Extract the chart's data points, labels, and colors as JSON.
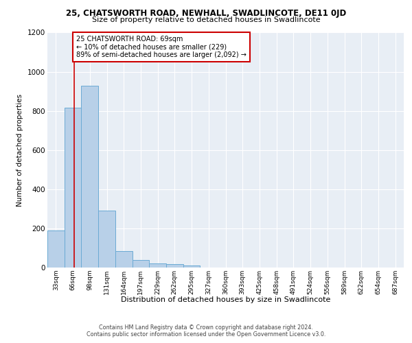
{
  "title1": "25, CHATSWORTH ROAD, NEWHALL, SWADLINCOTE, DE11 0JD",
  "title2": "Size of property relative to detached houses in Swadlincote",
  "xlabel": "Distribution of detached houses by size in Swadlincote",
  "ylabel": "Number of detached properties",
  "bin_labels": [
    "33sqm",
    "66sqm",
    "98sqm",
    "131sqm",
    "164sqm",
    "197sqm",
    "229sqm",
    "262sqm",
    "295sqm",
    "327sqm",
    "360sqm",
    "393sqm",
    "425sqm",
    "458sqm",
    "491sqm",
    "524sqm",
    "556sqm",
    "589sqm",
    "622sqm",
    "654sqm",
    "687sqm"
  ],
  "bar_heights": [
    190,
    815,
    930,
    290,
    85,
    37,
    20,
    18,
    11,
    0,
    0,
    0,
    0,
    0,
    0,
    0,
    0,
    0,
    0,
    0,
    0
  ],
  "bar_color": "#b8d0e8",
  "bar_edge_color": "#6aaad4",
  "annotation_line1": "25 CHATSWORTH ROAD: 69sqm",
  "annotation_line2": "← 10% of detached houses are smaller (229)",
  "annotation_line3": "89% of semi-detached houses are larger (2,092) →",
  "annotation_box_color": "#ffffff",
  "annotation_box_edge_color": "#cc0000",
  "marker_line_color": "#cc0000",
  "ylim": [
    0,
    1200
  ],
  "yticks": [
    0,
    200,
    400,
    600,
    800,
    1000,
    1200
  ],
  "bin_edges_values": [
    33,
    66,
    98,
    131,
    164,
    197,
    229,
    262,
    295,
    327,
    360,
    393,
    425,
    458,
    491,
    524,
    556,
    589,
    622,
    654,
    687
  ],
  "prop_size": 69,
  "footer1": "Contains HM Land Registry data © Crown copyright and database right 2024.",
  "footer2": "Contains public sector information licensed under the Open Government Licence v3.0.",
  "plot_bg_color": "#e8eef5"
}
